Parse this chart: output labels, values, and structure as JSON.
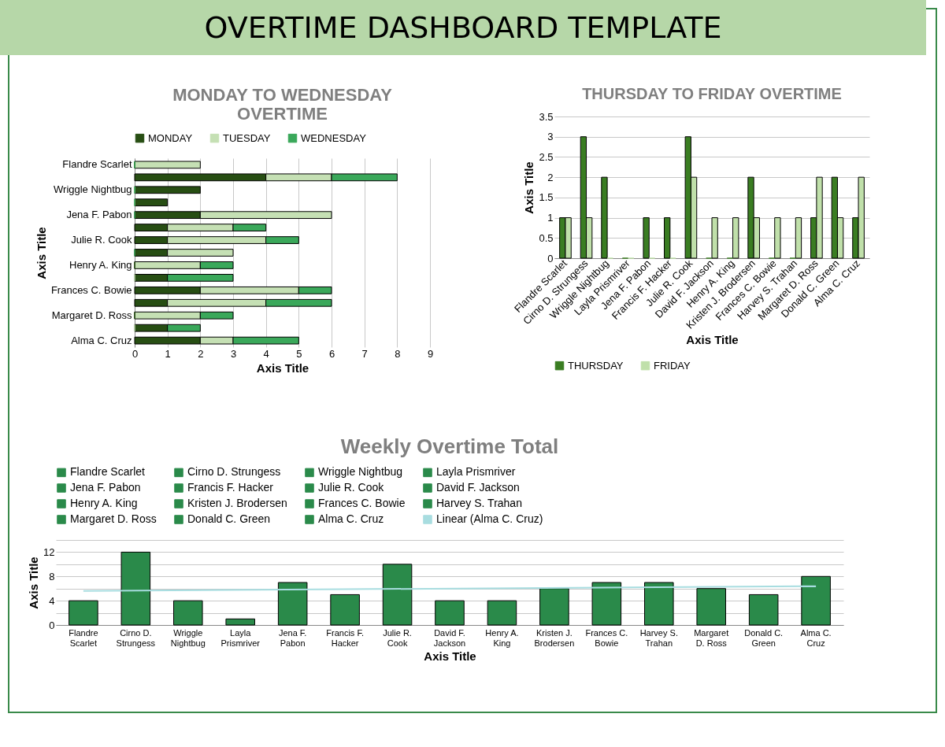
{
  "chart_data": [
    {
      "type": "other",
      "title": "OVERTIME DASHBOARD TEMPLATE"
    },
    {
      "type": "bar",
      "title": "MONDAY TO WEDNESDAY OVERTIME",
      "xlabel": "Axis Title",
      "ylabel": "Axis Title",
      "orientation": "horizontal",
      "stacked": true,
      "categories": [
        "Flandre Scarlet",
        null,
        "Wriggle Nightbug",
        null,
        "Jena F. Pabon",
        null,
        "Julie R. Cook",
        null,
        "Henry A. King",
        null,
        "Frances C. Bowie",
        null,
        "Margaret D. Ross",
        null,
        "Alma C. Cruz"
      ],
      "series": [
        {
          "name": "MONDAY",
          "color": "#274e13",
          "values": [
            0,
            4,
            2,
            1,
            2,
            1,
            1,
            1,
            0,
            1,
            2,
            1,
            0,
            1,
            2
          ]
        },
        {
          "name": "TUESDAY",
          "color": "#c5e0b4",
          "values": [
            2,
            2,
            0,
            0,
            4,
            2,
            3,
            2,
            2,
            0,
            3,
            3,
            2,
            0,
            1
          ]
        },
        {
          "name": "WEDNESDAY",
          "color": "#3aa85a",
          "values": [
            0,
            2,
            0,
            0,
            0,
            1,
            1,
            0,
            1,
            2,
            1,
            2,
            1,
            1,
            2
          ]
        }
      ],
      "xlim": [
        0,
        9
      ],
      "xticks": [
        0,
        1,
        2,
        3,
        4,
        5,
        6,
        7,
        8,
        9
      ],
      "grid": "x",
      "legend": "top"
    },
    {
      "type": "bar",
      "title": "THURSDAY TO FRIDAY OVERTIME",
      "xlabel": "Axis Title",
      "ylabel": "Axis Title",
      "categories": [
        "Flandre Scarlet",
        "Cirno D. Strungess",
        "Wriggle Nightbug",
        "Layla Prismriver",
        "Jena F. Pabon",
        "Francis F. Hacker",
        "Julie R. Cook",
        "David F. Jackson",
        "Henry A. King",
        "Kristen J. Brodersen",
        "Frances C. Bowie",
        "Harvey S. Trahan",
        "Margaret D. Ross",
        "Donald C. Green",
        "Alma C. Cruz"
      ],
      "series": [
        {
          "name": "THURSDAY",
          "color": "#3a7d22",
          "values": [
            1,
            3,
            2,
            0,
            1,
            1,
            3,
            0,
            0,
            2,
            0,
            0,
            1,
            2,
            1
          ]
        },
        {
          "name": "FRIDAY",
          "color": "#c0e0aa",
          "values": [
            1,
            1,
            0,
            0,
            0,
            0,
            2,
            1,
            1,
            1,
            1,
            1,
            2,
            1,
            2
          ]
        }
      ],
      "ylim": [
        0,
        3.5
      ],
      "yticks": [
        0,
        0.5,
        1,
        1.5,
        2,
        2.5,
        3,
        3.5
      ],
      "grid": "y",
      "legend": "bottom"
    },
    {
      "type": "bar",
      "title": "Weekly Overtime Total",
      "xlabel": "Axis Title",
      "ylabel": "Axis Title",
      "categories": [
        "Flandre Scarlet",
        "Cirno D. Strungess",
        "Wriggle Nightbug",
        "Layla Prismriver",
        "Jena F. Pabon",
        "Francis F. Hacker",
        "Julie R. Cook",
        "David F. Jackson",
        "Henry A. King",
        "Kristen J. Brodersen",
        "Frances C. Bowie",
        "Harvey S. Trahan",
        "Margaret D. Ross",
        "Donald C. Green",
        "Alma C. Cruz"
      ],
      "series": [
        {
          "name": "Flandre Scarlet",
          "color": "#2a8a4a",
          "values": [
            4,
            null,
            null,
            null,
            null,
            null,
            null,
            null,
            null,
            null,
            null,
            null,
            null,
            null,
            null
          ]
        },
        {
          "name": "Cirno D. Strungess",
          "color": "#2a8a4a",
          "values": [
            null,
            12,
            null,
            null,
            null,
            null,
            null,
            null,
            null,
            null,
            null,
            null,
            null,
            null,
            null
          ]
        },
        {
          "name": "Wriggle Nightbug",
          "color": "#2a8a4a",
          "values": [
            null,
            null,
            4,
            null,
            null,
            null,
            null,
            null,
            null,
            null,
            null,
            null,
            null,
            null,
            null
          ]
        },
        {
          "name": "Layla Prismriver",
          "color": "#2a8a4a",
          "values": [
            null,
            null,
            null,
            1,
            null,
            null,
            null,
            null,
            null,
            null,
            null,
            null,
            null,
            null,
            null
          ]
        },
        {
          "name": "Jena F. Pabon",
          "color": "#2a8a4a",
          "values": [
            null,
            null,
            null,
            null,
            7,
            null,
            null,
            null,
            null,
            null,
            null,
            null,
            null,
            null,
            null
          ]
        },
        {
          "name": "Francis F. Hacker",
          "color": "#2a8a4a",
          "values": [
            null,
            null,
            null,
            null,
            null,
            5,
            null,
            null,
            null,
            null,
            null,
            null,
            null,
            null,
            null
          ]
        },
        {
          "name": "Julie R. Cook",
          "color": "#2a8a4a",
          "values": [
            null,
            null,
            null,
            null,
            null,
            null,
            10,
            null,
            null,
            null,
            null,
            null,
            null,
            null,
            null
          ]
        },
        {
          "name": "David F. Jackson",
          "color": "#2a8a4a",
          "values": [
            null,
            null,
            null,
            null,
            null,
            null,
            null,
            4,
            null,
            null,
            null,
            null,
            null,
            null,
            null
          ]
        },
        {
          "name": "Henry A. King",
          "color": "#2a8a4a",
          "values": [
            null,
            null,
            null,
            null,
            null,
            null,
            null,
            null,
            4,
            null,
            null,
            null,
            null,
            null,
            null
          ]
        },
        {
          "name": "Kristen J. Brodersen",
          "color": "#2a8a4a",
          "values": [
            null,
            null,
            null,
            null,
            null,
            null,
            null,
            null,
            null,
            6,
            null,
            null,
            null,
            null,
            null
          ]
        },
        {
          "name": "Frances C. Bowie",
          "color": "#2a8a4a",
          "values": [
            null,
            null,
            null,
            null,
            null,
            null,
            null,
            null,
            null,
            null,
            7,
            null,
            null,
            null,
            null
          ]
        },
        {
          "name": "Harvey S. Trahan",
          "color": "#2a8a4a",
          "values": [
            null,
            null,
            null,
            null,
            null,
            null,
            null,
            null,
            null,
            null,
            null,
            7,
            null,
            null,
            null
          ]
        },
        {
          "name": "Margaret D. Ross",
          "color": "#2a8a4a",
          "values": [
            null,
            null,
            null,
            null,
            null,
            null,
            null,
            null,
            null,
            null,
            null,
            null,
            6,
            null,
            null
          ]
        },
        {
          "name": "Donald C. Green",
          "color": "#2a8a4a",
          "values": [
            null,
            null,
            null,
            null,
            null,
            null,
            null,
            null,
            null,
            null,
            null,
            null,
            null,
            5,
            null
          ]
        },
        {
          "name": "Alma C. Cruz",
          "color": "#2a8a4a",
          "values": [
            null,
            null,
            null,
            null,
            null,
            null,
            null,
            null,
            null,
            null,
            null,
            null,
            null,
            null,
            8
          ]
        },
        {
          "name": "Linear (Alma C. Cruz)",
          "type": "line",
          "color": "#a8dde0",
          "x": [
            "Flandre Scarlet",
            "Alma C. Cruz"
          ],
          "values": [
            5.6,
            6.4
          ]
        }
      ],
      "ylim": [
        0,
        14
      ],
      "yticks": [
        0,
        {
          "value": 2,
          "label": null
        },
        4,
        {
          "value": 6,
          "label": null
        },
        8,
        {
          "value": 10,
          "label": null
        },
        12,
        {
          "value": 14,
          "label": null
        }
      ],
      "grid": "y",
      "legend": "top"
    }
  ]
}
